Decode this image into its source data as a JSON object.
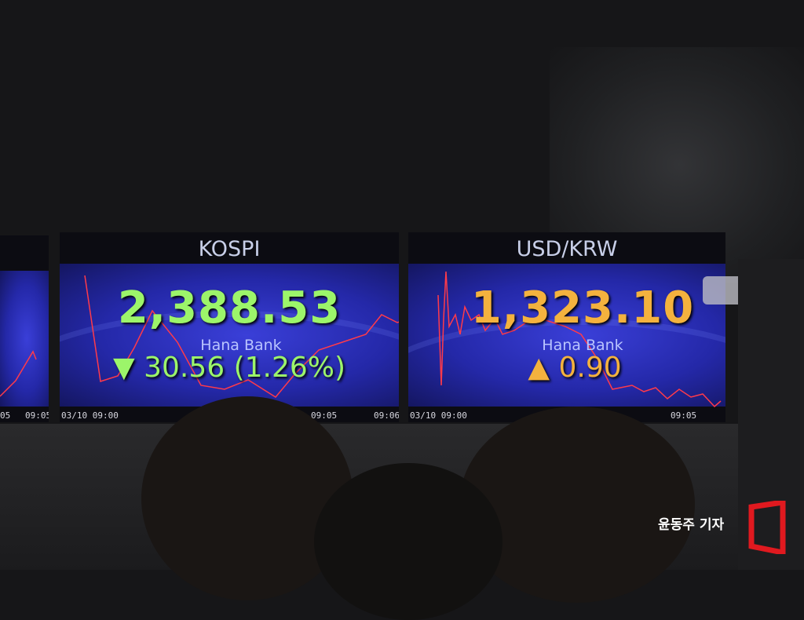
{
  "left_screen": {
    "ticks": [
      "05",
      "09:05"
    ]
  },
  "kospi": {
    "title": "KOSPI",
    "value": "2,388.53",
    "brand": "Hana Bank",
    "arrow": "▼",
    "change": "30.56",
    "change_pct": "(1.26%)",
    "color": "#9cf56a",
    "ticks": [
      "03/10 09:00",
      "09:05",
      "09:06"
    ]
  },
  "usdkrw": {
    "title": "USD/KRW",
    "value": "1,323.10",
    "brand": "Hana Bank",
    "arrow": "▲",
    "change": "0.90",
    "color": "#f4b23e",
    "ticks": [
      "03/10 09:00",
      "09:05"
    ]
  },
  "line_color": "#ff3a4a",
  "watermark": "윤동주 기자",
  "logo_color": "#e0191f"
}
